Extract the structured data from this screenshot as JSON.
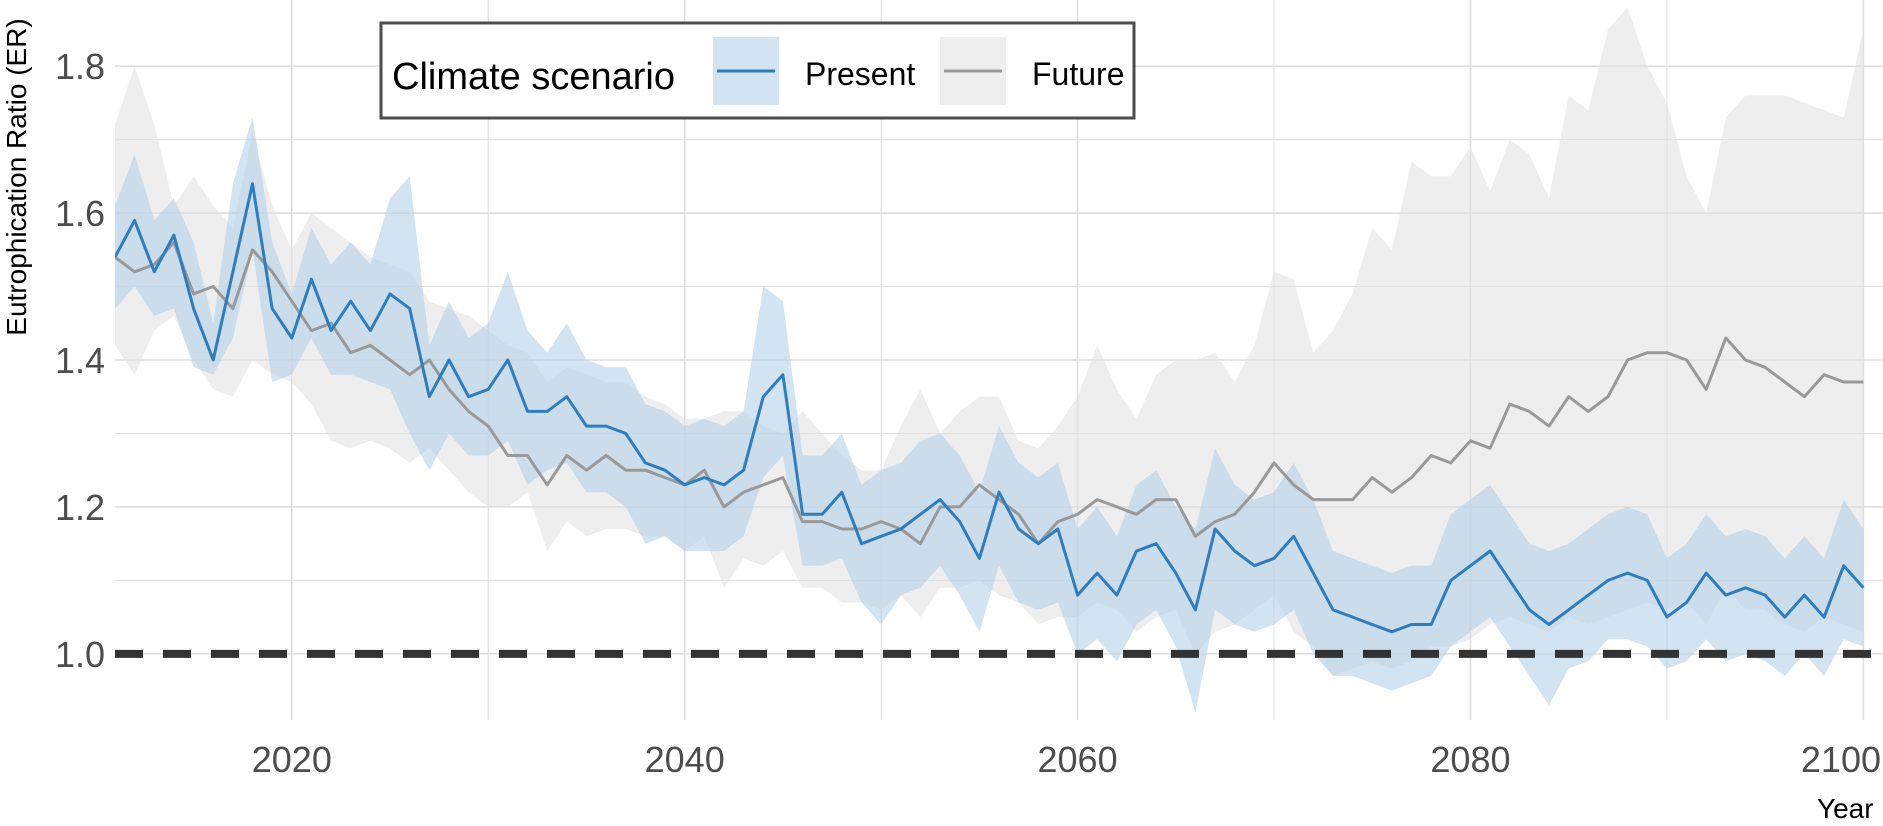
{
  "chart_data": {
    "type": "line",
    "title": "",
    "xlabel": "Year",
    "ylabel": "Eutrophication Ratio (ER)",
    "xlim": [
      2011,
      2101
    ],
    "ylim": [
      0.91,
      1.89
    ],
    "x_ticks": [
      2020,
      2040,
      2060,
      2080,
      2100
    ],
    "y_ticks": [
      1.0,
      1.2,
      1.4,
      1.6,
      1.8
    ],
    "grid": true,
    "reference_line": {
      "y": 1.0,
      "style": "dashed",
      "color": "#333333"
    },
    "legend": {
      "title": "Climate scenario",
      "placement": "top-left",
      "entries": [
        "Present",
        "Future"
      ]
    },
    "x": [
      2011,
      2012,
      2013,
      2014,
      2015,
      2016,
      2017,
      2018,
      2019,
      2020,
      2021,
      2022,
      2023,
      2024,
      2025,
      2026,
      2027,
      2028,
      2029,
      2030,
      2031,
      2032,
      2033,
      2034,
      2035,
      2036,
      2037,
      2038,
      2039,
      2040,
      2041,
      2042,
      2043,
      2044,
      2045,
      2046,
      2047,
      2048,
      2049,
      2050,
      2051,
      2052,
      2053,
      2054,
      2055,
      2056,
      2057,
      2058,
      2059,
      2060,
      2061,
      2062,
      2063,
      2064,
      2065,
      2066,
      2067,
      2068,
      2069,
      2070,
      2071,
      2072,
      2073,
      2074,
      2075,
      2076,
      2077,
      2078,
      2079,
      2080,
      2081,
      2082,
      2083,
      2084,
      2085,
      2086,
      2087,
      2088,
      2089,
      2090,
      2091,
      2092,
      2093,
      2094,
      2095,
      2096,
      2097,
      2098,
      2099,
      2100
    ],
    "series": [
      {
        "name": "Future",
        "color": "#999999",
        "band_color": "#e3e3e3",
        "values": [
          1.54,
          1.52,
          1.53,
          1.56,
          1.49,
          1.5,
          1.47,
          1.55,
          1.52,
          1.48,
          1.44,
          1.45,
          1.41,
          1.42,
          1.4,
          1.38,
          1.4,
          1.36,
          1.33,
          1.31,
          1.27,
          1.27,
          1.23,
          1.27,
          1.25,
          1.27,
          1.25,
          1.25,
          1.24,
          1.23,
          1.25,
          1.2,
          1.22,
          1.23,
          1.24,
          1.18,
          1.18,
          1.17,
          1.17,
          1.18,
          1.17,
          1.15,
          1.2,
          1.2,
          1.23,
          1.21,
          1.19,
          1.15,
          1.18,
          1.19,
          1.21,
          1.2,
          1.19,
          1.21,
          1.21,
          1.16,
          1.18,
          1.19,
          1.22,
          1.26,
          1.23,
          1.21,
          1.21,
          1.21,
          1.24,
          1.22,
          1.24,
          1.27,
          1.26,
          1.29,
          1.28,
          1.34,
          1.33,
          1.31,
          1.35,
          1.33,
          1.35,
          1.4,
          1.41,
          1.41,
          1.4,
          1.36,
          1.43,
          1.4,
          1.39,
          1.37,
          1.35,
          1.38,
          1.37,
          1.37
        ],
        "lower": [
          1.42,
          1.38,
          1.44,
          1.46,
          1.4,
          1.36,
          1.35,
          1.4,
          1.38,
          1.37,
          1.34,
          1.29,
          1.28,
          1.29,
          1.28,
          1.26,
          1.28,
          1.25,
          1.22,
          1.2,
          1.2,
          1.22,
          1.14,
          1.18,
          1.16,
          1.17,
          1.17,
          1.16,
          1.16,
          1.14,
          1.16,
          1.09,
          1.13,
          1.12,
          1.14,
          1.09,
          1.09,
          1.07,
          1.07,
          1.06,
          1.08,
          1.05,
          1.09,
          1.09,
          1.1,
          1.08,
          1.07,
          1.04,
          1.05,
          1.05,
          1.07,
          1.06,
          1.03,
          1.05,
          1.06,
          1.0,
          1.03,
          1.04,
          1.06,
          1.08,
          1.03,
          1.01,
          0.97,
          0.98,
          0.99,
          0.98,
          0.99,
          1.01,
          1.01,
          1.02,
          1.04,
          1.05,
          1.04,
          1.03,
          1.05,
          1.04,
          1.05,
          1.06,
          1.07,
          1.06,
          1.07,
          1.04,
          1.09,
          1.06,
          1.06,
          1.04,
          1.03,
          1.05,
          1.04,
          1.03
        ],
        "upper": [
          1.72,
          1.8,
          1.72,
          1.61,
          1.65,
          1.61,
          1.58,
          1.71,
          1.61,
          1.55,
          1.6,
          1.58,
          1.56,
          1.54,
          1.53,
          1.52,
          1.48,
          1.47,
          1.46,
          1.44,
          1.42,
          1.41,
          1.37,
          1.39,
          1.38,
          1.37,
          1.37,
          1.35,
          1.34,
          1.32,
          1.32,
          1.33,
          1.33,
          1.31,
          1.3,
          1.33,
          1.3,
          1.27,
          1.25,
          1.25,
          1.31,
          1.36,
          1.3,
          1.33,
          1.35,
          1.35,
          1.29,
          1.28,
          1.31,
          1.35,
          1.42,
          1.36,
          1.32,
          1.38,
          1.4,
          1.4,
          1.41,
          1.37,
          1.42,
          1.52,
          1.51,
          1.41,
          1.44,
          1.49,
          1.58,
          1.55,
          1.67,
          1.65,
          1.65,
          1.69,
          1.63,
          1.7,
          1.68,
          1.62,
          1.76,
          1.74,
          1.85,
          1.88,
          1.8,
          1.75,
          1.65,
          1.6,
          1.73,
          1.76,
          1.76,
          1.76,
          1.75,
          1.74,
          1.73,
          1.85
        ]
      },
      {
        "name": "Present",
        "color": "#2e7ebf",
        "band_color": "#b4d1e7",
        "values": [
          1.54,
          1.59,
          1.52,
          1.57,
          1.47,
          1.4,
          1.52,
          1.64,
          1.47,
          1.43,
          1.51,
          1.44,
          1.48,
          1.44,
          1.49,
          1.47,
          1.35,
          1.4,
          1.35,
          1.36,
          1.4,
          1.33,
          1.33,
          1.35,
          1.31,
          1.31,
          1.3,
          1.26,
          1.25,
          1.23,
          1.24,
          1.23,
          1.25,
          1.35,
          1.38,
          1.19,
          1.19,
          1.22,
          1.15,
          1.16,
          1.17,
          1.19,
          1.21,
          1.18,
          1.13,
          1.22,
          1.17,
          1.15,
          1.17,
          1.08,
          1.11,
          1.08,
          1.14,
          1.15,
          1.11,
          1.06,
          1.17,
          1.14,
          1.12,
          1.13,
          1.16,
          1.11,
          1.06,
          1.05,
          1.04,
          1.03,
          1.04,
          1.04,
          1.1,
          1.12,
          1.14,
          1.1,
          1.06,
          1.04,
          1.06,
          1.08,
          1.1,
          1.11,
          1.1,
          1.05,
          1.07,
          1.11,
          1.08,
          1.09,
          1.08,
          1.05,
          1.08,
          1.05,
          1.12,
          1.09
        ],
        "lower": [
          1.47,
          1.5,
          1.46,
          1.47,
          1.39,
          1.38,
          1.43,
          1.55,
          1.37,
          1.38,
          1.43,
          1.38,
          1.38,
          1.37,
          1.36,
          1.3,
          1.25,
          1.3,
          1.27,
          1.27,
          1.29,
          1.23,
          1.25,
          1.26,
          1.22,
          1.22,
          1.2,
          1.15,
          1.16,
          1.14,
          1.14,
          1.14,
          1.16,
          1.24,
          1.27,
          1.12,
          1.12,
          1.13,
          1.07,
          1.04,
          1.08,
          1.09,
          1.12,
          1.08,
          1.03,
          1.12,
          1.07,
          1.06,
          1.07,
          1.0,
          1.02,
          0.99,
          1.04,
          1.06,
          1.01,
          0.92,
          1.06,
          1.04,
          1.03,
          1.04,
          1.06,
          1.0,
          0.97,
          0.97,
          0.96,
          0.95,
          0.96,
          0.97,
          1.01,
          1.03,
          1.05,
          1.01,
          0.97,
          0.93,
          0.98,
          0.99,
          1.02,
          1.02,
          1.01,
          0.98,
          0.99,
          1.02,
          0.99,
          1.0,
          0.99,
          0.97,
          1.0,
          0.97,
          1.02,
          1.01
        ],
        "upper": [
          1.61,
          1.68,
          1.59,
          1.62,
          1.56,
          1.45,
          1.64,
          1.73,
          1.56,
          1.49,
          1.58,
          1.53,
          1.56,
          1.53,
          1.62,
          1.65,
          1.42,
          1.48,
          1.43,
          1.45,
          1.52,
          1.44,
          1.41,
          1.45,
          1.4,
          1.39,
          1.39,
          1.34,
          1.33,
          1.31,
          1.32,
          1.31,
          1.33,
          1.5,
          1.48,
          1.27,
          1.27,
          1.3,
          1.23,
          1.25,
          1.26,
          1.29,
          1.3,
          1.27,
          1.22,
          1.31,
          1.26,
          1.24,
          1.26,
          1.17,
          1.2,
          1.16,
          1.23,
          1.25,
          1.2,
          1.17,
          1.28,
          1.23,
          1.21,
          1.22,
          1.26,
          1.21,
          1.14,
          1.13,
          1.12,
          1.11,
          1.12,
          1.12,
          1.19,
          1.21,
          1.23,
          1.19,
          1.15,
          1.14,
          1.15,
          1.17,
          1.19,
          1.2,
          1.19,
          1.13,
          1.15,
          1.19,
          1.16,
          1.17,
          1.16,
          1.13,
          1.16,
          1.13,
          1.21,
          1.17
        ]
      }
    ]
  }
}
